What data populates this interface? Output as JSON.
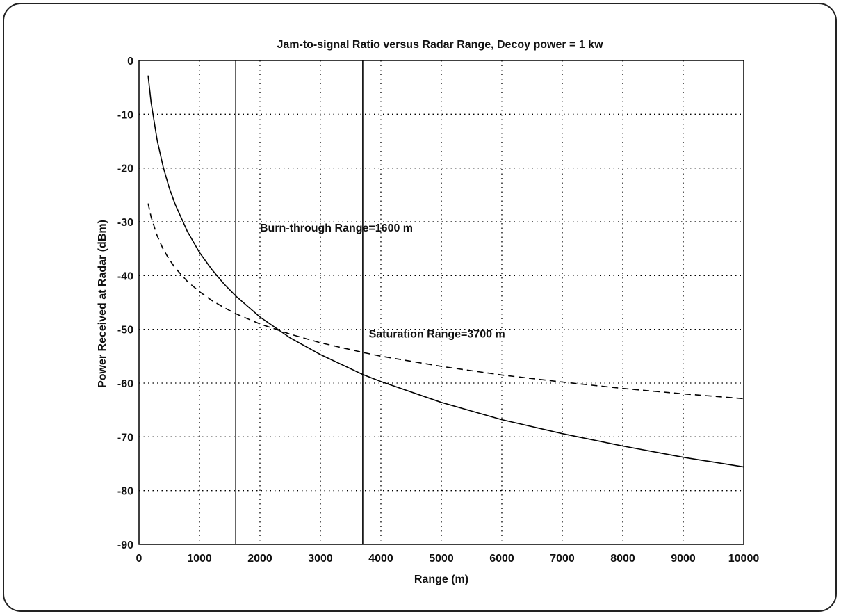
{
  "chart_data": {
    "type": "line",
    "title": "Jam-to-signal Ratio versus Radar Range, Decoy power = 1 kw",
    "xlabel": "Range (m)",
    "ylabel": "Power Received at Radar (dBm)",
    "xlim": [
      0,
      10000
    ],
    "ylim": [
      -90,
      0
    ],
    "xticks": [
      0,
      1000,
      2000,
      3000,
      4000,
      5000,
      6000,
      7000,
      8000,
      9000,
      10000
    ],
    "xtick_labels": [
      "0",
      "1000",
      "2000",
      "3000",
      "4000",
      "5000",
      "6000",
      "7000",
      "8000",
      "9000",
      "10000"
    ],
    "yticks": [
      0,
      -10,
      -20,
      -30,
      -40,
      -50,
      -60,
      -70,
      -80,
      -90
    ],
    "ytick_labels": [
      "0",
      "-10",
      "-20",
      "-30",
      "-40",
      "-50",
      "-60",
      "-70",
      "-80",
      "-90"
    ],
    "grid": true,
    "series": [
      {
        "style": "solid",
        "x": [
          150,
          200,
          300,
          400,
          500,
          600,
          800,
          1000,
          1200,
          1400,
          1600,
          2000,
          2500,
          3000,
          3700,
          4000,
          5000,
          6000,
          7000,
          8000,
          9000,
          10000
        ],
        "y": [
          -2.8,
          -7.8,
          -14.8,
          -19.8,
          -23.7,
          -26.8,
          -31.8,
          -35.7,
          -38.8,
          -41.5,
          -43.8,
          -47.7,
          -51.6,
          -54.7,
          -58.4,
          -59.7,
          -63.6,
          -66.8,
          -69.4,
          -71.7,
          -73.8,
          -75.6
        ]
      },
      {
        "style": "dashed",
        "x": [
          150,
          200,
          300,
          400,
          500,
          600,
          800,
          1000,
          1200,
          1400,
          1600,
          2000,
          2500,
          3000,
          3700,
          4000,
          5000,
          6000,
          7000,
          8000,
          9000,
          10000
        ],
        "y": [
          -26.6,
          -29.1,
          -32.6,
          -35.1,
          -37.0,
          -38.6,
          -41.1,
          -43.0,
          -44.6,
          -45.9,
          -47.1,
          -49.0,
          -50.9,
          -52.5,
          -54.3,
          -55.0,
          -56.9,
          -58.5,
          -59.8,
          -61.0,
          -62.0,
          -62.9
        ]
      }
    ],
    "vlines": [
      1600,
      3700
    ],
    "annotations": [
      {
        "text": "Burn-through Range=1600 m",
        "x": 2000,
        "y": -31.8
      },
      {
        "text": "Saturation Range=3700 m",
        "x": 3800,
        "y": -51.5
      }
    ]
  }
}
